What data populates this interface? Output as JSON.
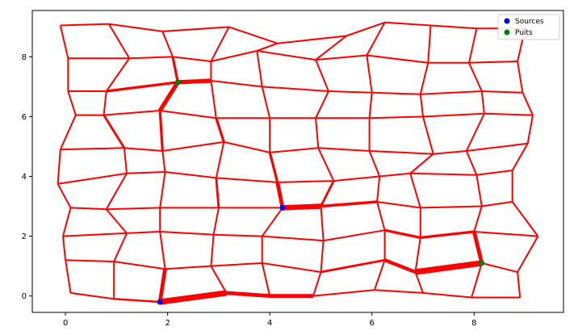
{
  "chart_data": {
    "type": "network",
    "title": "",
    "xlabel": "",
    "ylabel": "",
    "xlim": [
      -0.65,
      9.75
    ],
    "ylim": [
      -0.55,
      9.55
    ],
    "xticks": [
      0,
      2,
      4,
      6,
      8
    ],
    "yticks": [
      0,
      2,
      4,
      6,
      8
    ],
    "grid": false,
    "legend": {
      "placement": "top-right",
      "entries": [
        {
          "label": "Sources",
          "color": "#0000ff"
        },
        {
          "label": "Puits",
          "color": "#008000"
        }
      ]
    },
    "edge_color": "#ff0000",
    "nodes": [
      [
        -0.1,
        9.05
      ],
      [
        0.85,
        9.1
      ],
      [
        1.9,
        8.85
      ],
      [
        3.2,
        9.0
      ],
      [
        4.15,
        8.45
      ],
      [
        5.5,
        8.7
      ],
      [
        6.25,
        9.15
      ],
      [
        7.15,
        9.05
      ],
      [
        8.05,
        8.95
      ],
      [
        9.0,
        8.95
      ],
      [
        0.05,
        7.95
      ],
      [
        1.25,
        7.95
      ],
      [
        2.1,
        8.0
      ],
      [
        2.85,
        7.85
      ],
      [
        3.75,
        8.2
      ],
      [
        4.9,
        7.9
      ],
      [
        5.9,
        8.05
      ],
      [
        7.1,
        7.8
      ],
      [
        7.9,
        7.8
      ],
      [
        8.85,
        7.85
      ],
      [
        0.05,
        6.85
      ],
      [
        0.8,
        6.85
      ],
      [
        2.2,
        7.15
      ],
      [
        2.85,
        7.2
      ],
      [
        3.85,
        7.0
      ],
      [
        5.15,
        6.85
      ],
      [
        6.0,
        6.8
      ],
      [
        6.95,
        6.75
      ],
      [
        8.15,
        6.85
      ],
      [
        8.95,
        6.8
      ],
      [
        0.2,
        6.05
      ],
      [
        0.75,
        6.05
      ],
      [
        1.85,
        6.2
      ],
      [
        2.95,
        5.95
      ],
      [
        4.0,
        5.95
      ],
      [
        4.9,
        5.95
      ],
      [
        5.95,
        5.95
      ],
      [
        7.0,
        6.0
      ],
      [
        8.2,
        6.1
      ],
      [
        9.15,
        6.05
      ],
      [
        -0.1,
        4.9
      ],
      [
        1.15,
        4.95
      ],
      [
        1.9,
        4.85
      ],
      [
        3.1,
        5.15
      ],
      [
        4.0,
        4.8
      ],
      [
        4.95,
        4.95
      ],
      [
        5.95,
        4.85
      ],
      [
        7.2,
        4.75
      ],
      [
        7.85,
        4.85
      ],
      [
        9.05,
        5.1
      ],
      [
        -0.15,
        3.75
      ],
      [
        1.2,
        4.1
      ],
      [
        1.95,
        4.15
      ],
      [
        2.95,
        3.95
      ],
      [
        4.15,
        3.8
      ],
      [
        5.25,
        3.85
      ],
      [
        6.15,
        4.0
      ],
      [
        6.75,
        4.1
      ],
      [
        8.05,
        4.05
      ],
      [
        8.75,
        4.2
      ],
      [
        0.1,
        2.95
      ],
      [
        0.8,
        2.9
      ],
      [
        1.85,
        2.95
      ],
      [
        3.0,
        2.95
      ],
      [
        4.25,
        2.95
      ],
      [
        5.0,
        3.0
      ],
      [
        6.1,
        3.15
      ],
      [
        6.95,
        2.95
      ],
      [
        8.15,
        3.0
      ],
      [
        8.75,
        3.15
      ],
      [
        -0.05,
        2.0
      ],
      [
        1.2,
        2.1
      ],
      [
        1.85,
        2.15
      ],
      [
        2.9,
        2.05
      ],
      [
        3.85,
        2.0
      ],
      [
        5.05,
        1.85
      ],
      [
        6.25,
        2.2
      ],
      [
        6.95,
        1.95
      ],
      [
        8.0,
        2.15
      ],
      [
        9.25,
        2.0
      ],
      [
        0.0,
        1.2
      ],
      [
        0.95,
        1.15
      ],
      [
        1.95,
        0.9
      ],
      [
        2.85,
        1.0
      ],
      [
        3.85,
        1.1
      ],
      [
        5.0,
        0.8
      ],
      [
        6.25,
        1.2
      ],
      [
        6.85,
        0.8
      ],
      [
        8.15,
        1.1
      ],
      [
        8.85,
        0.8
      ],
      [
        0.1,
        0.1
      ],
      [
        0.95,
        -0.1
      ],
      [
        1.85,
        -0.2
      ],
      [
        3.15,
        0.1
      ],
      [
        4.0,
        0.0
      ],
      [
        4.85,
        0.0
      ],
      [
        6.05,
        0.2
      ],
      [
        7.0,
        0.1
      ],
      [
        7.95,
        -0.05
      ],
      [
        8.9,
        -0.05
      ]
    ],
    "edges": [
      [
        0,
        1,
        1
      ],
      [
        1,
        2,
        1
      ],
      [
        2,
        3,
        1
      ],
      [
        3,
        4,
        1
      ],
      [
        4,
        5,
        1
      ],
      [
        5,
        6,
        1
      ],
      [
        6,
        7,
        1
      ],
      [
        7,
        8,
        1
      ],
      [
        8,
        9,
        1
      ],
      [
        10,
        11,
        1
      ],
      [
        11,
        12,
        1
      ],
      [
        12,
        13,
        1
      ],
      [
        13,
        14,
        1
      ],
      [
        14,
        15,
        1
      ],
      [
        15,
        16,
        1
      ],
      [
        16,
        17,
        1
      ],
      [
        17,
        18,
        1
      ],
      [
        18,
        19,
        1
      ],
      [
        20,
        21,
        1
      ],
      [
        21,
        22,
        1.6
      ],
      [
        22,
        23,
        2.6
      ],
      [
        23,
        24,
        1
      ],
      [
        24,
        25,
        1
      ],
      [
        25,
        26,
        1
      ],
      [
        26,
        27,
        1
      ],
      [
        27,
        28,
        1
      ],
      [
        28,
        29,
        1
      ],
      [
        30,
        31,
        1
      ],
      [
        31,
        32,
        1
      ],
      [
        32,
        33,
        1
      ],
      [
        33,
        34,
        1
      ],
      [
        34,
        35,
        1
      ],
      [
        35,
        36,
        1
      ],
      [
        36,
        37,
        1
      ],
      [
        37,
        38,
        1
      ],
      [
        38,
        39,
        1
      ],
      [
        40,
        41,
        1
      ],
      [
        41,
        42,
        1
      ],
      [
        42,
        43,
        1
      ],
      [
        43,
        44,
        1
      ],
      [
        44,
        45,
        1
      ],
      [
        45,
        46,
        1
      ],
      [
        46,
        47,
        1
      ],
      [
        47,
        48,
        1
      ],
      [
        48,
        49,
        1
      ],
      [
        50,
        51,
        1
      ],
      [
        51,
        52,
        1
      ],
      [
        52,
        53,
        1
      ],
      [
        53,
        54,
        1
      ],
      [
        54,
        55,
        1
      ],
      [
        55,
        56,
        1
      ],
      [
        56,
        57,
        1
      ],
      [
        57,
        58,
        1
      ],
      [
        58,
        59,
        1
      ],
      [
        60,
        61,
        1
      ],
      [
        61,
        62,
        1
      ],
      [
        62,
        63,
        1
      ],
      [
        63,
        64,
        1
      ],
      [
        64,
        65,
        3.2
      ],
      [
        65,
        66,
        1.8
      ],
      [
        66,
        67,
        1
      ],
      [
        67,
        68,
        1
      ],
      [
        68,
        69,
        1
      ],
      [
        70,
        71,
        1
      ],
      [
        71,
        72,
        1
      ],
      [
        72,
        73,
        1
      ],
      [
        73,
        74,
        1
      ],
      [
        74,
        75,
        1
      ],
      [
        75,
        76,
        1
      ],
      [
        76,
        77,
        1.6
      ],
      [
        77,
        78,
        1.6
      ],
      [
        78,
        79,
        1
      ],
      [
        80,
        81,
        1
      ],
      [
        81,
        82,
        1
      ],
      [
        82,
        83,
        1
      ],
      [
        83,
        84,
        1
      ],
      [
        84,
        85,
        1
      ],
      [
        85,
        86,
        1.4
      ],
      [
        86,
        87,
        2.2
      ],
      [
        87,
        88,
        3.6
      ],
      [
        88,
        89,
        1
      ],
      [
        90,
        91,
        1
      ],
      [
        91,
        92,
        1.2
      ],
      [
        92,
        93,
        3.6
      ],
      [
        93,
        94,
        2.4
      ],
      [
        94,
        95,
        2.4
      ],
      [
        95,
        96,
        1
      ],
      [
        96,
        97,
        1
      ],
      [
        97,
        98,
        1
      ],
      [
        98,
        99,
        1
      ],
      [
        0,
        10,
        1
      ],
      [
        10,
        20,
        1
      ],
      [
        20,
        30,
        1
      ],
      [
        30,
        40,
        1
      ],
      [
        40,
        50,
        1
      ],
      [
        50,
        60,
        1
      ],
      [
        60,
        70,
        1
      ],
      [
        70,
        80,
        1
      ],
      [
        80,
        90,
        1
      ],
      [
        1,
        11,
        1
      ],
      [
        11,
        21,
        1
      ],
      [
        21,
        31,
        1
      ],
      [
        31,
        41,
        1.4
      ],
      [
        41,
        51,
        1
      ],
      [
        51,
        61,
        1
      ],
      [
        61,
        71,
        1
      ],
      [
        71,
        81,
        1
      ],
      [
        81,
        91,
        1
      ],
      [
        2,
        12,
        1
      ],
      [
        12,
        22,
        1.6
      ],
      [
        22,
        32,
        2.6
      ],
      [
        32,
        42,
        1.6
      ],
      [
        42,
        52,
        1
      ],
      [
        52,
        62,
        1
      ],
      [
        62,
        72,
        1
      ],
      [
        72,
        82,
        1
      ],
      [
        82,
        92,
        2.4
      ],
      [
        3,
        13,
        1
      ],
      [
        13,
        23,
        1
      ],
      [
        23,
        33,
        1
      ],
      [
        33,
        43,
        1.6
      ],
      [
        43,
        53,
        1
      ],
      [
        53,
        63,
        1.4
      ],
      [
        63,
        73,
        1
      ],
      [
        73,
        83,
        1
      ],
      [
        83,
        93,
        1
      ],
      [
        4,
        14,
        1
      ],
      [
        14,
        24,
        1
      ],
      [
        24,
        34,
        1
      ],
      [
        34,
        44,
        1
      ],
      [
        44,
        54,
        1.6
      ],
      [
        54,
        64,
        2.4
      ],
      [
        64,
        74,
        1
      ],
      [
        74,
        84,
        1
      ],
      [
        84,
        94,
        1
      ],
      [
        5,
        15,
        1
      ],
      [
        15,
        25,
        1
      ],
      [
        25,
        35,
        1
      ],
      [
        35,
        45,
        1
      ],
      [
        45,
        55,
        1
      ],
      [
        55,
        65,
        1.4
      ],
      [
        65,
        75,
        1
      ],
      [
        75,
        85,
        1
      ],
      [
        85,
        95,
        1
      ],
      [
        6,
        16,
        1
      ],
      [
        16,
        26,
        1
      ],
      [
        26,
        36,
        1
      ],
      [
        36,
        46,
        1
      ],
      [
        46,
        56,
        1
      ],
      [
        56,
        66,
        1
      ],
      [
        66,
        76,
        1
      ],
      [
        76,
        86,
        1
      ],
      [
        86,
        96,
        1
      ],
      [
        7,
        17,
        1
      ],
      [
        17,
        27,
        1
      ],
      [
        27,
        37,
        1
      ],
      [
        37,
        47,
        1
      ],
      [
        47,
        57,
        1
      ],
      [
        57,
        67,
        1
      ],
      [
        67,
        77,
        1
      ],
      [
        77,
        87,
        1
      ],
      [
        87,
        97,
        1
      ],
      [
        8,
        18,
        1
      ],
      [
        18,
        28,
        1
      ],
      [
        28,
        38,
        1
      ],
      [
        38,
        48,
        1
      ],
      [
        48,
        58,
        1
      ],
      [
        58,
        68,
        1
      ],
      [
        68,
        78,
        1
      ],
      [
        78,
        88,
        2.4
      ],
      [
        88,
        98,
        1
      ],
      [
        9,
        19,
        1
      ],
      [
        19,
        29,
        1
      ],
      [
        29,
        39,
        1
      ],
      [
        39,
        49,
        1
      ],
      [
        49,
        59,
        1
      ],
      [
        59,
        69,
        1
      ],
      [
        69,
        79,
        1
      ],
      [
        79,
        89,
        1
      ],
      [
        89,
        99,
        1
      ]
    ],
    "sources": [
      [
        1.85,
        -0.2
      ],
      [
        4.25,
        2.95
      ]
    ],
    "sinks": [
      [
        2.2,
        7.15
      ],
      [
        8.15,
        1.1
      ]
    ]
  }
}
